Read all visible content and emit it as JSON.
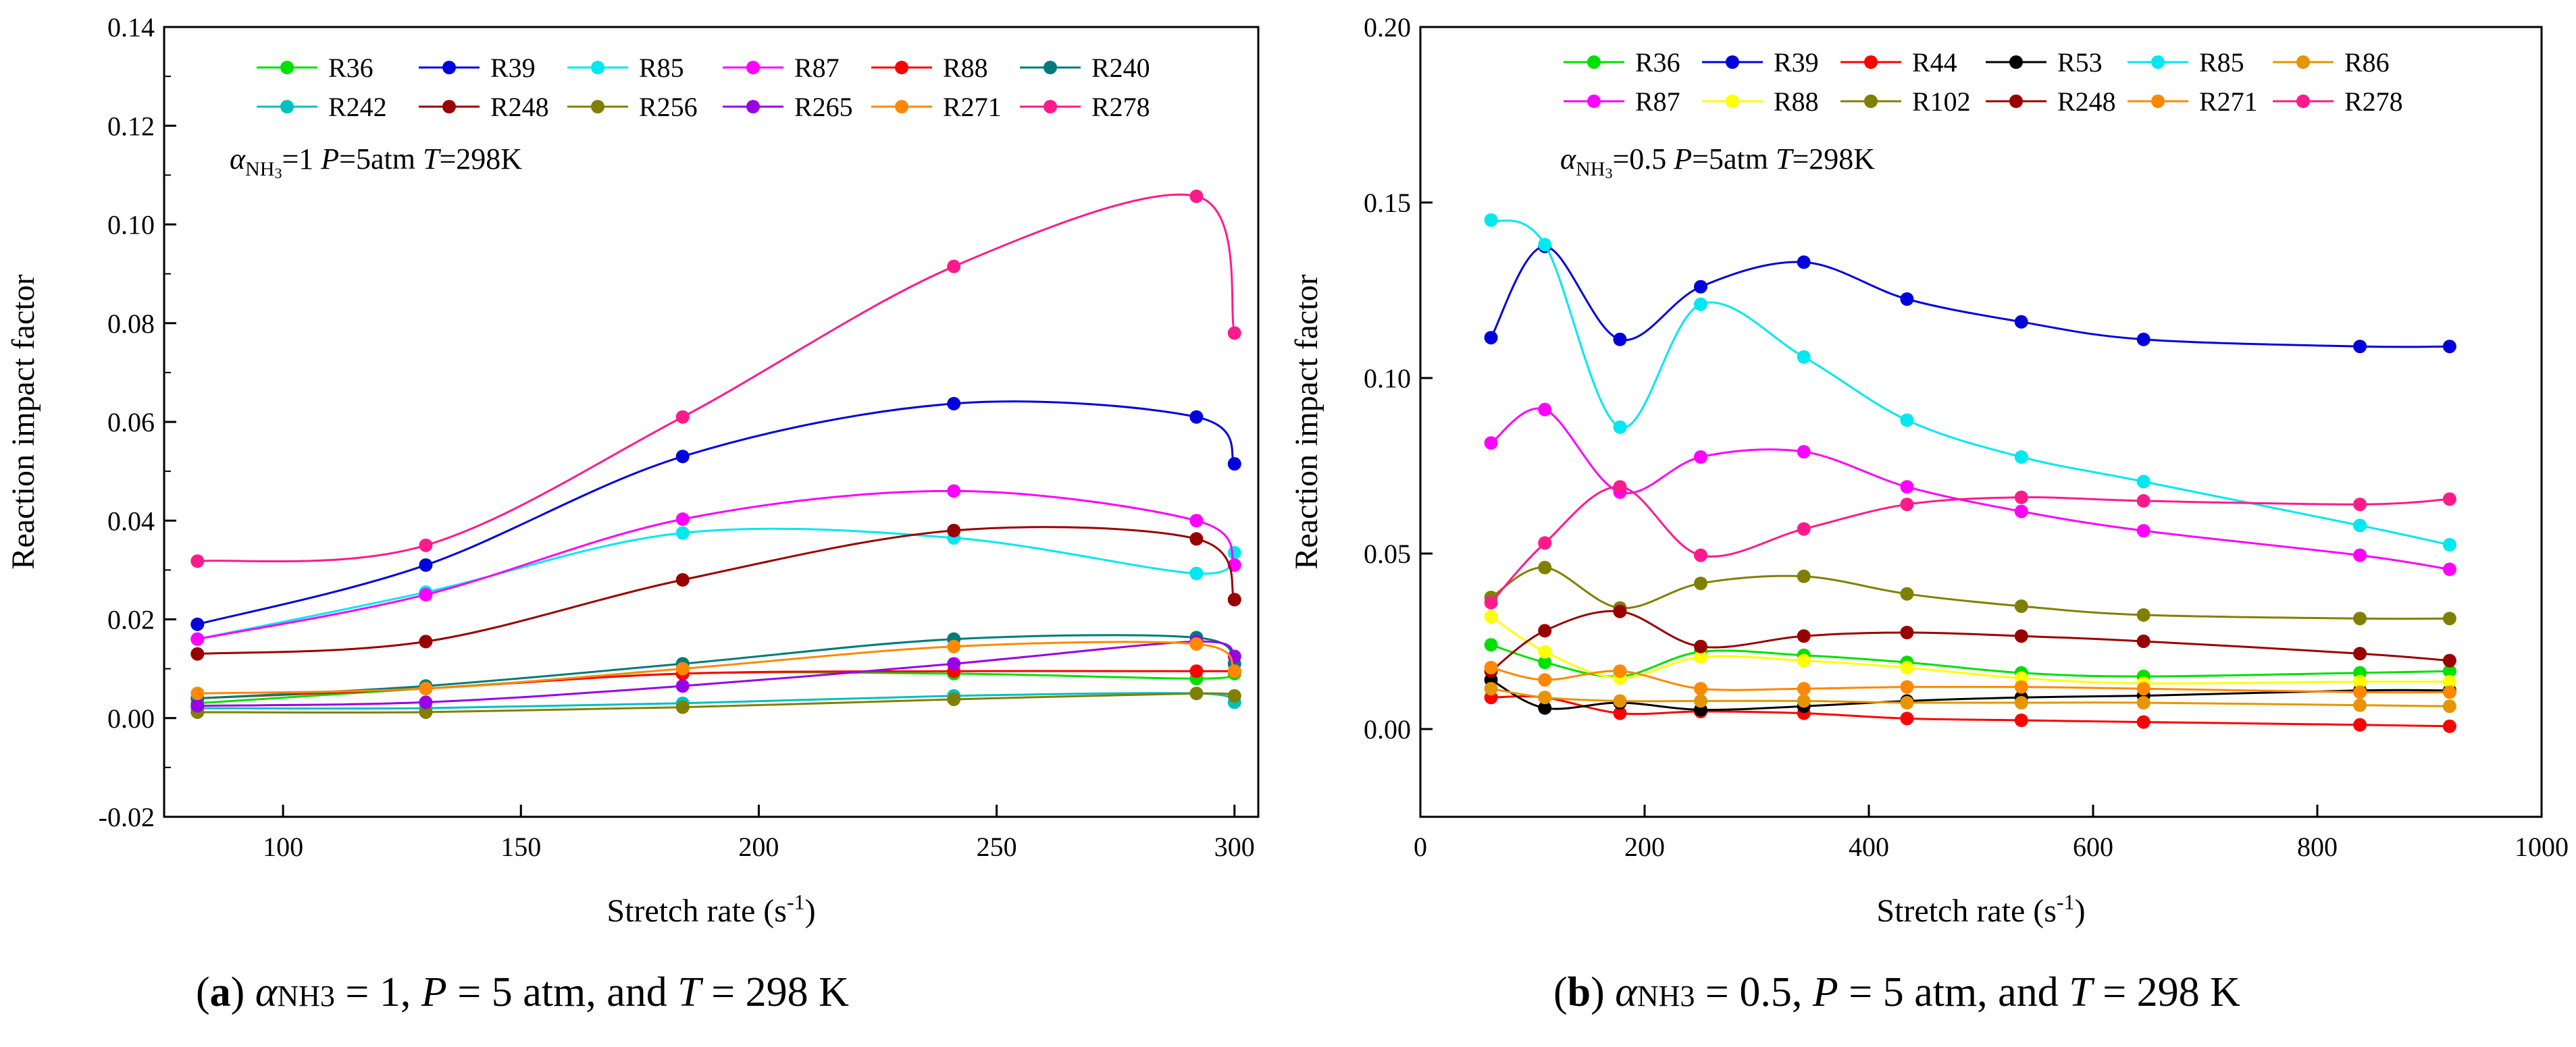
{
  "figure": {
    "panels": [
      {
        "caption": {
          "letter": "a",
          "pre": "α",
          "sub": "NH3",
          "mid1": " = 1, ",
          "p": "P",
          "mid2": " = 5 atm, and ",
          "t": "T",
          "post": " = 298 K"
        },
        "annotation": {
          "alpha": "α",
          "sub": "NH",
          "sub3": "3",
          "eq": "=1 ",
          "p": "P",
          "pval": "=5atm ",
          "t": "T",
          "tval": "=298K"
        }
      },
      {
        "caption": {
          "letter": "b",
          "pre": "α",
          "sub": "NH3",
          "mid1": " = 0.5, ",
          "p": "P",
          "mid2": " = 5 atm, and ",
          "t": "T",
          "post": " = 298 K"
        },
        "annotation": {
          "alpha": "α",
          "sub": "NH",
          "sub3": "3",
          "eq": "=0.5 ",
          "p": "P",
          "pval": "=5atm ",
          "t": "T",
          "tval": "=298K"
        }
      }
    ]
  },
  "chart_data": [
    {
      "type": "line",
      "xlabel": "Stretch rate (s",
      "xlabel_sup": "-1",
      "xlabel_close": ")",
      "ylabel": "Reaction impact factor",
      "xlim": [
        75,
        305
      ],
      "ylim": [
        -0.02,
        0.14
      ],
      "xticks": [
        100,
        150,
        200,
        250,
        300
      ],
      "xtick_labels": [
        "100",
        "150",
        "200",
        "250",
        "300"
      ],
      "yticks": [
        -0.02,
        0.0,
        0.02,
        0.04,
        0.06,
        0.08,
        0.1,
        0.12,
        0.14
      ],
      "ytick_labels": [
        "-0.02",
        "0.00",
        "0.02",
        "0.04",
        "0.06",
        "0.08",
        "0.10",
        "0.12",
        "0.14"
      ],
      "legend_position": "top",
      "x": [
        82,
        130,
        184,
        241,
        292,
        300
      ],
      "series": [
        {
          "name": "R36",
          "color": "#00e000",
          "values": [
            0.003,
            0.006,
            0.009,
            0.009,
            0.008,
            0.009
          ]
        },
        {
          "name": "R39",
          "color": "#0000dd",
          "values": [
            0.019,
            0.031,
            0.053,
            0.0637,
            0.061,
            0.0515
          ]
        },
        {
          "name": "R85",
          "color": "#00e8f0",
          "values": [
            0.016,
            0.0255,
            0.0375,
            0.0365,
            0.0293,
            0.0335
          ]
        },
        {
          "name": "R87",
          "color": "#ff00ff",
          "values": [
            0.016,
            0.025,
            0.0403,
            0.046,
            0.04,
            0.031
          ]
        },
        {
          "name": "R88",
          "color": "#ff0000",
          "values": [
            0.004,
            0.006,
            0.009,
            0.0095,
            0.0095,
            0.0095
          ]
        },
        {
          "name": "R240",
          "color": "#007a7a",
          "values": [
            0.004,
            0.0065,
            0.011,
            0.016,
            0.0163,
            0.011
          ]
        },
        {
          "name": "R242",
          "color": "#00c0c0",
          "values": [
            0.002,
            0.002,
            0.003,
            0.0045,
            0.005,
            0.0032
          ]
        },
        {
          "name": "R248",
          "color": "#990000",
          "values": [
            0.013,
            0.0155,
            0.028,
            0.038,
            0.0363,
            0.024
          ]
        },
        {
          "name": "R256",
          "color": "#808000",
          "values": [
            0.0012,
            0.0012,
            0.0022,
            0.0038,
            0.005,
            0.0045
          ]
        },
        {
          "name": "R265",
          "color": "#9900e6",
          "values": [
            0.0025,
            0.0032,
            0.0065,
            0.011,
            0.0155,
            0.0125
          ]
        },
        {
          "name": "R271",
          "color": "#ff8800",
          "values": [
            0.005,
            0.006,
            0.01,
            0.0145,
            0.015,
            0.0095
          ]
        },
        {
          "name": "R278",
          "color": "#ff1a8c",
          "values": [
            0.0318,
            0.035,
            0.061,
            0.0915,
            0.1057,
            0.078
          ]
        }
      ]
    },
    {
      "type": "line",
      "xlabel": "Stretch rate (s",
      "xlabel_sup": "-1",
      "xlabel_close": ")",
      "ylabel": "Reaction impact factor",
      "xlim": [
        0,
        1000
      ],
      "ylim": [
        -0.025,
        0.2
      ],
      "xticks": [
        0,
        200,
        400,
        600,
        800,
        1000
      ],
      "xtick_labels": [
        "0",
        "200",
        "400",
        "600",
        "800",
        "1000"
      ],
      "yticks": [
        0.0,
        0.05,
        0.1,
        0.15,
        0.2
      ],
      "ytick_labels": [
        "0.00",
        "0.05",
        "0.10",
        "0.15",
        "0.20"
      ],
      "legend_position": "top",
      "x": [
        63,
        111,
        178,
        250,
        342,
        434,
        536,
        645,
        838,
        918
      ],
      "series": [
        {
          "name": "R36",
          "color": "#00e000",
          "values": [
            0.024,
            0.019,
            0.015,
            0.022,
            0.021,
            0.019,
            0.016,
            0.015,
            0.016,
            0.0165
          ]
        },
        {
          "name": "R39",
          "color": "#0000dd",
          "values": [
            0.1115,
            0.1375,
            0.111,
            0.126,
            0.133,
            0.1225,
            0.116,
            0.111,
            0.109,
            0.109
          ]
        },
        {
          "name": "R44",
          "color": "#ff0000",
          "values": [
            0.009,
            0.009,
            0.0045,
            0.005,
            0.0045,
            0.003,
            0.0025,
            0.002,
            0.0012,
            0.0008
          ]
        },
        {
          "name": "R53",
          "color": "#000000",
          "values": [
            0.014,
            0.006,
            0.0075,
            0.0055,
            0.0065,
            0.008,
            0.009,
            0.0095,
            0.011,
            0.011
          ]
        },
        {
          "name": "R85",
          "color": "#00e8f0",
          "values": [
            0.145,
            0.138,
            0.086,
            0.121,
            0.106,
            0.088,
            0.0775,
            0.0705,
            0.058,
            0.0525
          ]
        },
        {
          "name": "R86",
          "color": "#e69500",
          "values": [
            0.0115,
            0.009,
            0.008,
            0.008,
            0.008,
            0.0075,
            0.0075,
            0.0075,
            0.0068,
            0.0065
          ]
        },
        {
          "name": "R87",
          "color": "#ff00ff",
          "values": [
            0.0815,
            0.091,
            0.0675,
            0.0775,
            0.079,
            0.069,
            0.062,
            0.0565,
            0.0495,
            0.0455
          ]
        },
        {
          "name": "R88",
          "color": "#ffff00",
          "values": [
            0.032,
            0.022,
            0.0145,
            0.0205,
            0.0195,
            0.0175,
            0.0145,
            0.013,
            0.0135,
            0.0135
          ]
        },
        {
          "name": "R102",
          "color": "#808000",
          "values": [
            0.0375,
            0.046,
            0.0345,
            0.0415,
            0.0435,
            0.0385,
            0.035,
            0.0325,
            0.0315,
            0.0315
          ]
        },
        {
          "name": "R248",
          "color": "#990000",
          "values": [
            0.0165,
            0.028,
            0.0335,
            0.0235,
            0.0265,
            0.0275,
            0.0265,
            0.025,
            0.0215,
            0.0195
          ]
        },
        {
          "name": "R271",
          "color": "#ff8800",
          "values": [
            0.0175,
            0.014,
            0.0165,
            0.0115,
            0.0115,
            0.012,
            0.012,
            0.0115,
            0.0105,
            0.0105
          ]
        },
        {
          "name": "R278",
          "color": "#ff1a8c",
          "values": [
            0.036,
            0.053,
            0.069,
            0.0495,
            0.057,
            0.064,
            0.066,
            0.065,
            0.064,
            0.0655
          ]
        }
      ]
    }
  ]
}
